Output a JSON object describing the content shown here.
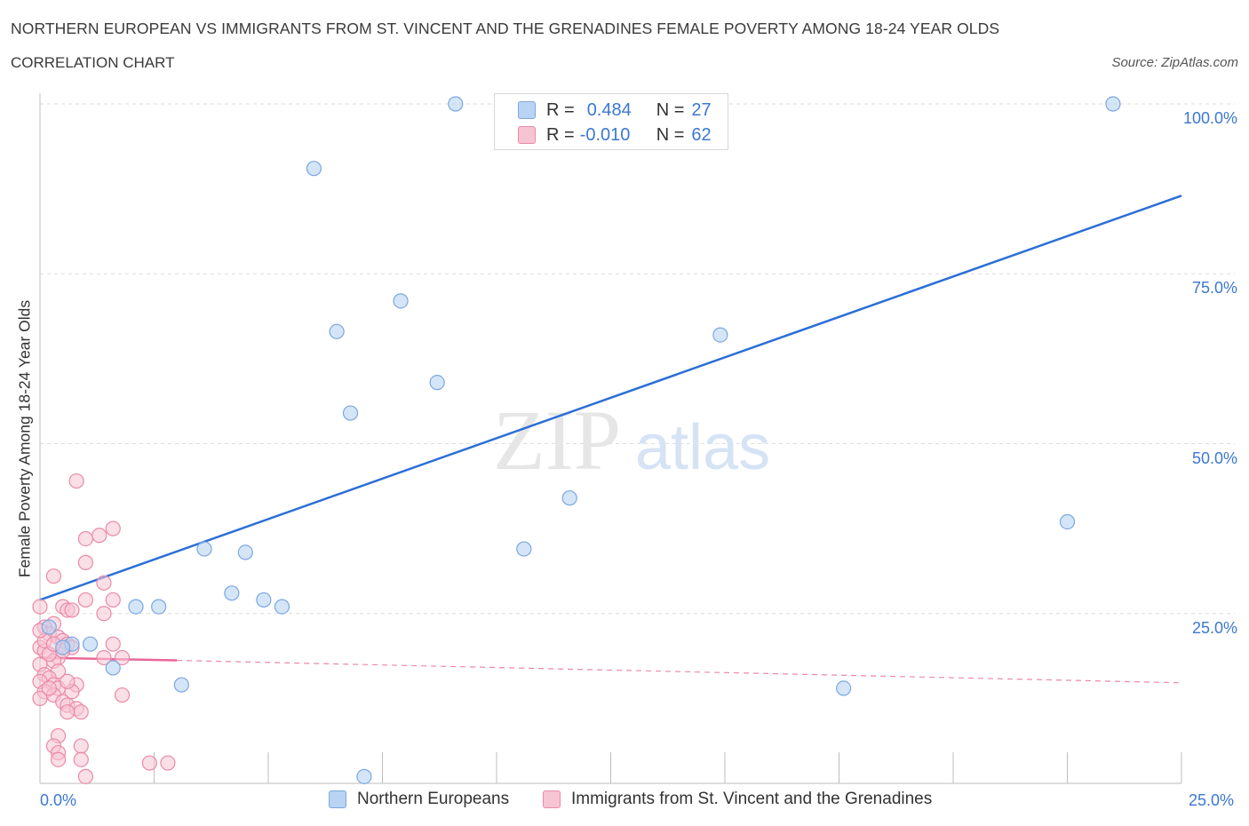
{
  "header": {
    "title": "NORTHERN EUROPEAN VS IMMIGRANTS FROM ST. VINCENT AND THE GRENADINES FEMALE POVERTY AMONG 18-24 YEAR OLDS",
    "subtitle": "CORRELATION CHART",
    "source": "Source: ZipAtlas.com"
  },
  "legend": {
    "r_label": "R =",
    "n_label": "N =",
    "series1": {
      "r": "0.484",
      "n": "27"
    },
    "series2": {
      "r": "-0.010",
      "n": "62"
    }
  },
  "colors": {
    "blue_fill": "#b9d3f3",
    "blue_stroke": "#7aa7e0",
    "blue_line": "#2b6fd6",
    "pink_fill": "#f7c4d4",
    "pink_stroke": "#e98aa8",
    "pink_line": "#e8689a",
    "tick_text": "#3b78d1"
  },
  "watermark": {
    "zip": "ZIP",
    "atlas": "atlas"
  },
  "chart_data": {
    "type": "scatter",
    "xlabel": "",
    "ylabel": "Female Poverty Among 18-24 Year Olds",
    "xlim": [
      0,
      25
    ],
    "ylim": [
      0,
      100
    ],
    "x_tick_labels": [
      "0.0%",
      "25.0%"
    ],
    "y_tick_labels": [
      "100.0%",
      "75.0%",
      "50.0%",
      "25.0%"
    ],
    "y_tick_values": [
      100,
      75,
      50,
      25
    ],
    "grid": true,
    "legend_position": "top-center",
    "series": [
      {
        "name": "Northern Europeans",
        "color": "#7aa7e0",
        "trend": {
          "x": [
            0,
            25
          ],
          "y": [
            27.0,
            86.5
          ],
          "style": "solid"
        },
        "points": [
          [
            9.1,
            100
          ],
          [
            12.6,
            100
          ],
          [
            23.5,
            100
          ],
          [
            6.0,
            90.5
          ],
          [
            7.9,
            71.0
          ],
          [
            6.5,
            66.5
          ],
          [
            14.9,
            66.0
          ],
          [
            8.7,
            59.0
          ],
          [
            6.8,
            54.5
          ],
          [
            11.6,
            42.0
          ],
          [
            22.5,
            38.5
          ],
          [
            3.6,
            34.5
          ],
          [
            4.5,
            34.0
          ],
          [
            10.6,
            34.5
          ],
          [
            4.2,
            28.0
          ],
          [
            4.9,
            27.0
          ],
          [
            2.1,
            26.0
          ],
          [
            2.6,
            26.0
          ],
          [
            5.3,
            26.0
          ],
          [
            1.1,
            20.5
          ],
          [
            0.7,
            20.5
          ],
          [
            0.5,
            20.0
          ],
          [
            1.6,
            17.0
          ],
          [
            3.1,
            14.5
          ],
          [
            17.6,
            14.0
          ],
          [
            7.1,
            1.0
          ],
          [
            0.2,
            23.0
          ]
        ]
      },
      {
        "name": "Immigrants from St. Vincent and the Grenadines",
        "color": "#e98aa8",
        "trend": {
          "x": [
            0,
            3
          ],
          "y": [
            18.5,
            18.1
          ],
          "style": "solid",
          "extension": {
            "x": [
              3,
              25
            ],
            "y": [
              18.1,
              14.8
            ],
            "style": "dashed"
          }
        },
        "points": [
          [
            0.8,
            44.5
          ],
          [
            1.6,
            37.5
          ],
          [
            1.0,
            36.0
          ],
          [
            1.3,
            36.5
          ],
          [
            1.0,
            32.5
          ],
          [
            0.3,
            30.5
          ],
          [
            1.4,
            29.5
          ],
          [
            0.0,
            26.0
          ],
          [
            0.5,
            26.0
          ],
          [
            0.6,
            25.5
          ],
          [
            0.7,
            25.5
          ],
          [
            1.0,
            27.0
          ],
          [
            1.6,
            27.0
          ],
          [
            1.4,
            25.0
          ],
          [
            0.3,
            23.5
          ],
          [
            0.1,
            23.0
          ],
          [
            0.2,
            22.0
          ],
          [
            0.4,
            21.5
          ],
          [
            0.5,
            21.0
          ],
          [
            0.6,
            20.5
          ],
          [
            0.7,
            20.0
          ],
          [
            1.6,
            20.5
          ],
          [
            0.0,
            20.0
          ],
          [
            0.1,
            19.5
          ],
          [
            0.4,
            18.5
          ],
          [
            0.3,
            18.0
          ],
          [
            1.4,
            18.5
          ],
          [
            1.8,
            18.5
          ],
          [
            0.0,
            17.5
          ],
          [
            0.4,
            16.5
          ],
          [
            0.1,
            16.0
          ],
          [
            0.2,
            15.5
          ],
          [
            0.0,
            15.0
          ],
          [
            0.3,
            14.5
          ],
          [
            0.4,
            14.0
          ],
          [
            0.8,
            14.5
          ],
          [
            0.1,
            13.5
          ],
          [
            0.3,
            13.0
          ],
          [
            0.7,
            13.5
          ],
          [
            0.0,
            12.5
          ],
          [
            1.8,
            13.0
          ],
          [
            0.5,
            12.0
          ],
          [
            0.6,
            11.5
          ],
          [
            0.8,
            11.0
          ],
          [
            0.6,
            10.5
          ],
          [
            0.9,
            10.5
          ],
          [
            0.4,
            7.0
          ],
          [
            0.3,
            5.5
          ],
          [
            0.9,
            5.5
          ],
          [
            0.4,
            4.5
          ],
          [
            0.4,
            3.5
          ],
          [
            0.9,
            3.5
          ],
          [
            2.4,
            3.0
          ],
          [
            2.8,
            3.0
          ],
          [
            1.0,
            1.0
          ],
          [
            0.2,
            19.0
          ],
          [
            0.1,
            21.0
          ],
          [
            0.6,
            15.0
          ],
          [
            0.2,
            14.0
          ],
          [
            0.5,
            19.5
          ],
          [
            0.0,
            22.5
          ],
          [
            0.3,
            20.5
          ]
        ]
      }
    ]
  }
}
